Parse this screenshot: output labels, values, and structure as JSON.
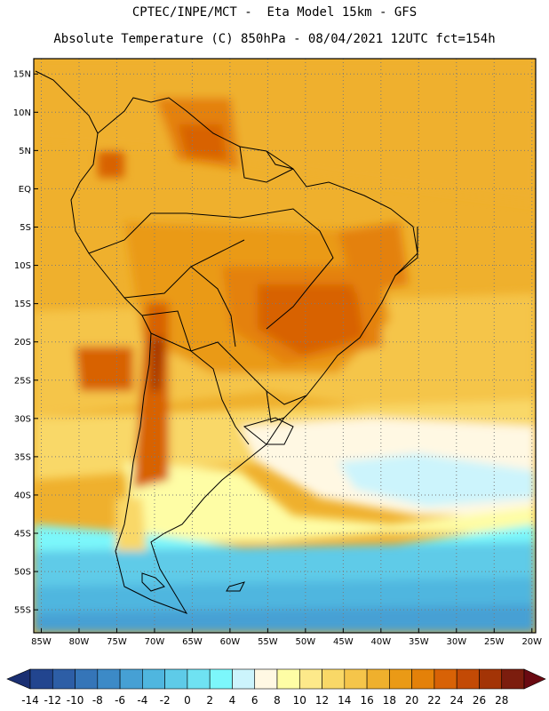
{
  "header": {
    "line1": "CPTEC/INPE/MCT -  Eta Model 15km - GFS",
    "line2": "Absolute Temperature (C) 850hPa - 08/04/2021 12UTC fct=154h"
  },
  "map": {
    "lat_range": [
      -58,
      17
    ],
    "lon_range": [
      -86,
      -19.5
    ],
    "lat_ticks": [
      {
        "v": 15,
        "label": "15N"
      },
      {
        "v": 10,
        "label": "10N"
      },
      {
        "v": 5,
        "label": "5N"
      },
      {
        "v": 0,
        "label": "EQ"
      },
      {
        "v": -5,
        "label": "5S"
      },
      {
        "v": -10,
        "label": "10S"
      },
      {
        "v": -15,
        "label": "15S"
      },
      {
        "v": -20,
        "label": "20S"
      },
      {
        "v": -25,
        "label": "25S"
      },
      {
        "v": -30,
        "label": "30S"
      },
      {
        "v": -35,
        "label": "35S"
      },
      {
        "v": -40,
        "label": "40S"
      },
      {
        "v": -45,
        "label": "45S"
      },
      {
        "v": -50,
        "label": "50S"
      },
      {
        "v": -55,
        "label": "55S"
      }
    ],
    "lon_ticks": [
      {
        "v": -85,
        "label": "85W"
      },
      {
        "v": -80,
        "label": "80W"
      },
      {
        "v": -75,
        "label": "75W"
      },
      {
        "v": -70,
        "label": "70W"
      },
      {
        "v": -65,
        "label": "65W"
      },
      {
        "v": -60,
        "label": "60W"
      },
      {
        "v": -55,
        "label": "55W"
      },
      {
        "v": -50,
        "label": "50W"
      },
      {
        "v": -45,
        "label": "45W"
      },
      {
        "v": -40,
        "label": "40W"
      },
      {
        "v": -35,
        "label": "35W"
      },
      {
        "v": -30,
        "label": "30W"
      },
      {
        "v": -25,
        "label": "25W"
      },
      {
        "v": -20,
        "label": "20W"
      }
    ],
    "grid": "dotted",
    "temperature_bands": [
      {
        "temp_c": 20,
        "region": "north-tropical-ocean"
      },
      {
        "temp_c": 22,
        "region": "amazon-and-northeast-brazil"
      },
      {
        "temp_c": 24,
        "region": "central-brazil-andes-foothills"
      },
      {
        "temp_c": 16,
        "region": "south-atlantic-midlatitude"
      },
      {
        "temp_c": 6,
        "region": "cold-tongue-off-argentina"
      },
      {
        "temp_c": 2,
        "region": "southern-ocean-south-of-45S"
      }
    ]
  },
  "colorbar": {
    "labels": [
      "-14",
      "-12",
      "-10",
      "-8",
      "-6",
      "-4",
      "-2",
      "0",
      "2",
      "4",
      "6",
      "8",
      "10",
      "12",
      "14",
      "16",
      "18",
      "20",
      "22",
      "24",
      "26",
      "28"
    ],
    "colors": [
      "#22458f",
      "#2d5ea6",
      "#3575b8",
      "#3c8ac7",
      "#46a0d4",
      "#4fb6df",
      "#5ecbe8",
      "#6fe2f2",
      "#7cf7fb",
      "#ccf4fc",
      "#fff8e3",
      "#fefda5",
      "#fde98a",
      "#f9d867",
      "#f5c54a",
      "#efb02d",
      "#ea9a16",
      "#e48109",
      "#d86206",
      "#c34a05",
      "#a33406",
      "#7c1d0e"
    ],
    "min_arrow_color": "#1a2f72",
    "max_arrow_color": "#6a0a12"
  }
}
